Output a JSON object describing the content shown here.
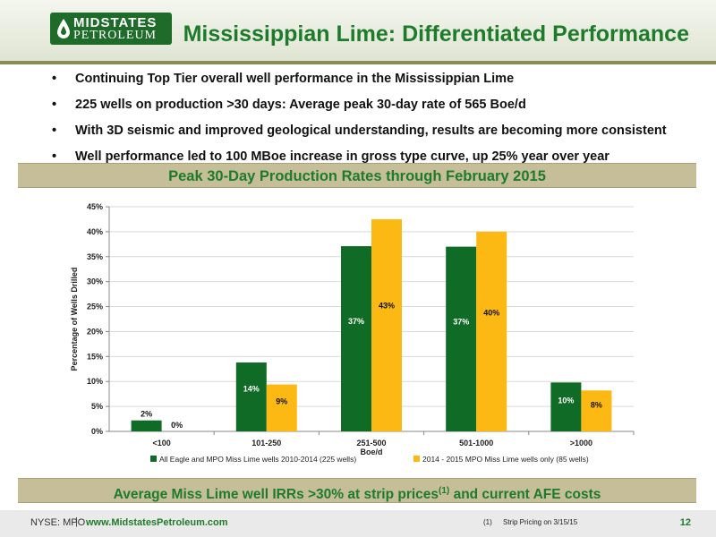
{
  "header": {
    "logo_line1": "MIDSTATES",
    "logo_line2": "PETROLEUM",
    "title": "Mississippian Lime: Differentiated Performance"
  },
  "bullets": [
    "Continuing Top Tier overall well performance in the Mississippian Lime",
    "225 wells on production >30 days: Average peak 30-day rate of 565 Boe/d",
    "With 3D seismic and improved geological understanding, results are becoming more consistent",
    "Well performance led to 100 MBoe increase in gross type curve, up 25% year over year"
  ],
  "bullet_glyph": "•",
  "banner_top": "Peak 30-Day Production Rates through February 2015",
  "banner_bottom": {
    "text_before": "Average Miss Lime well IRRs >30% at strip prices",
    "sup": "(1)",
    "text_after": " and current AFE costs"
  },
  "chart_data": {
    "type": "bar",
    "categories": [
      "<100",
      "101-250",
      "251-500",
      "501-1000",
      ">1000"
    ],
    "xlabel": "Boe/d",
    "ylabel": "Percentage of Wells Drilled",
    "ylim": [
      0,
      45
    ],
    "yticks": [
      0,
      5,
      10,
      15,
      20,
      25,
      30,
      35,
      40,
      45
    ],
    "ytick_labels": [
      "0%",
      "5%",
      "10%",
      "15%",
      "20%",
      "25%",
      "30%",
      "35%",
      "40%",
      "45%"
    ],
    "grid": true,
    "legend_position": "bottom",
    "series": [
      {
        "name": "All Eagle and MPO Miss Lime wells 2010-2014 (225 wells)",
        "color": "#0f6b25",
        "values": [
          2.2,
          13.8,
          37.1,
          37.0,
          9.8
        ],
        "labels": [
          "2%",
          "14%",
          "37%",
          "37%",
          "10%"
        ]
      },
      {
        "name": "2014 - 2015 MPO Miss Lime wells only (85 wells)",
        "color": "#fdb913",
        "values": [
          0,
          9.4,
          42.5,
          40.0,
          8.2
        ],
        "labels": [
          "0%",
          "9%",
          "43%",
          "40%",
          "8%"
        ]
      }
    ]
  },
  "footer": {
    "ticker": "NYSE: MPO",
    "separator": "|",
    "url": "www.MidstatesPetroleum.com",
    "note_num": "(1)",
    "note": "Strip Pricing on 3/15/15",
    "page": "12"
  },
  "colors": {
    "brand_green": "#1e7b2b",
    "banner_bg": "#c5be99",
    "rule": "#8c8c57"
  }
}
